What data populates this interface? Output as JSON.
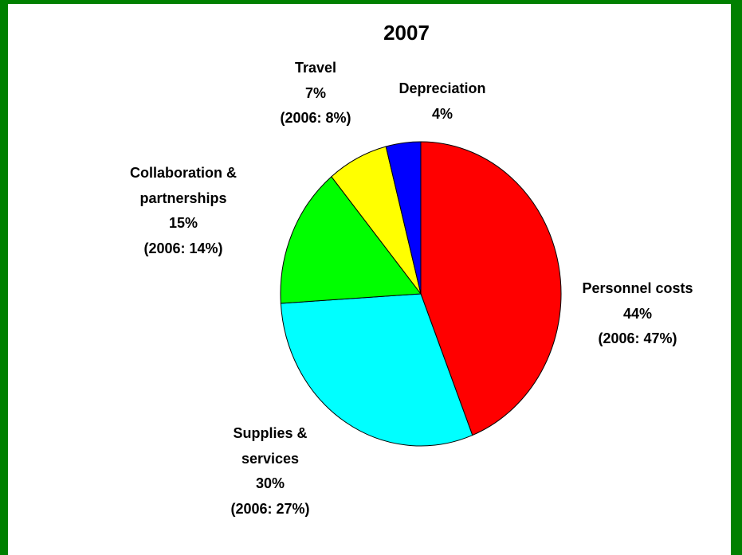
{
  "chart_data": {
    "type": "pie",
    "title": "2007",
    "categories": [
      "Personnel costs",
      "Supplies & services",
      "Collaboration & partnerships",
      "Travel",
      "Depreciation"
    ],
    "values": [
      44,
      30,
      15,
      7,
      4
    ],
    "value_labels": [
      "44%",
      "30%",
      "15%",
      "7%",
      "4%"
    ],
    "previous_year_labels": [
      "(2006: 47%)",
      "(2006: 27%)",
      "(2006: 14%)",
      "(2006: 8%)",
      null
    ],
    "colors": [
      "#ff0000",
      "#00ffff",
      "#00ff00",
      "#ffff00",
      "#0000ff"
    ]
  }
}
